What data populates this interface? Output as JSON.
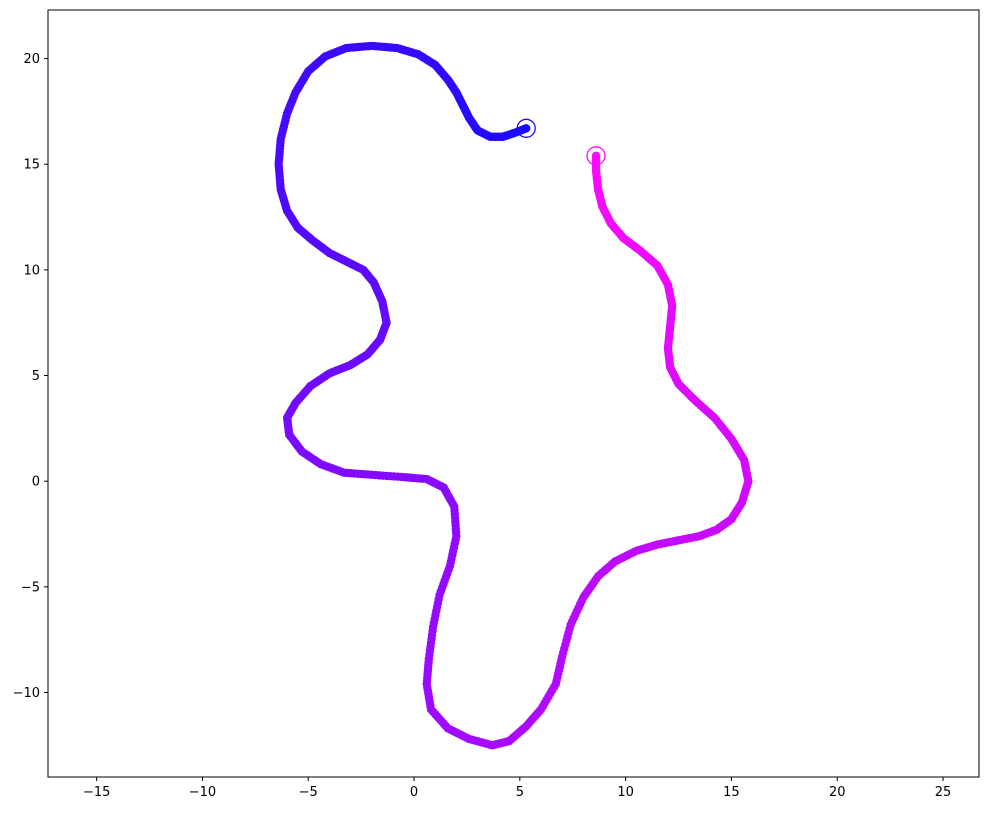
{
  "chart_data": {
    "type": "scatter",
    "title": "",
    "xlabel": "",
    "ylabel": "",
    "xlim": [
      -17.3,
      26.7
    ],
    "ylim": [
      -14.0,
      22.3
    ],
    "grid": false,
    "x_ticks": [
      -15,
      -10,
      -5,
      0,
      5,
      10,
      15,
      20,
      25
    ],
    "y_ticks": [
      -10,
      -5,
      0,
      5,
      10,
      15,
      20
    ],
    "x_tick_labels": [
      "−15",
      "−10",
      "−5",
      "0",
      "5",
      "10",
      "15",
      "20",
      "25"
    ],
    "y_tick_labels": [
      "−10",
      "−5",
      "0",
      "5",
      "10",
      "15",
      "20"
    ],
    "color_start": "#1a0aff",
    "color_end": "#ff0aff",
    "path": [
      [
        5.3,
        16.7
      ],
      [
        4.8,
        16.5
      ],
      [
        4.2,
        16.3
      ],
      [
        3.6,
        16.3
      ],
      [
        3.0,
        16.6
      ],
      [
        2.6,
        17.2
      ],
      [
        2.3,
        17.8
      ],
      [
        2.0,
        18.4
      ],
      [
        1.6,
        19.0
      ],
      [
        1.0,
        19.7
      ],
      [
        0.2,
        20.2
      ],
      [
        -0.8,
        20.5
      ],
      [
        -2.0,
        20.6
      ],
      [
        -3.2,
        20.5
      ],
      [
        -4.2,
        20.1
      ],
      [
        -5.0,
        19.4
      ],
      [
        -5.6,
        18.4
      ],
      [
        -6.0,
        17.4
      ],
      [
        -6.3,
        16.2
      ],
      [
        -6.4,
        15.0
      ],
      [
        -6.3,
        13.8
      ],
      [
        -6.0,
        12.8
      ],
      [
        -5.5,
        12.0
      ],
      [
        -4.8,
        11.4
      ],
      [
        -4.0,
        10.8
      ],
      [
        -3.2,
        10.4
      ],
      [
        -2.4,
        10.0
      ],
      [
        -1.9,
        9.4
      ],
      [
        -1.5,
        8.5
      ],
      [
        -1.3,
        7.5
      ],
      [
        -1.6,
        6.7
      ],
      [
        -2.2,
        6.0
      ],
      [
        -3.0,
        5.5
      ],
      [
        -4.0,
        5.1
      ],
      [
        -4.9,
        4.5
      ],
      [
        -5.6,
        3.7
      ],
      [
        -6.0,
        3.0
      ],
      [
        -5.9,
        2.2
      ],
      [
        -5.3,
        1.4
      ],
      [
        -4.4,
        0.8
      ],
      [
        -3.3,
        0.4
      ],
      [
        -2.0,
        0.3
      ],
      [
        -0.6,
        0.2
      ],
      [
        0.6,
        0.1
      ],
      [
        1.4,
        -0.3
      ],
      [
        1.9,
        -1.2
      ],
      [
        2.0,
        -2.6
      ],
      [
        1.7,
        -4.0
      ],
      [
        1.2,
        -5.4
      ],
      [
        0.9,
        -6.9
      ],
      [
        0.7,
        -8.4
      ],
      [
        0.6,
        -9.6
      ],
      [
        0.8,
        -10.8
      ],
      [
        1.6,
        -11.7
      ],
      [
        2.6,
        -12.2
      ],
      [
        3.7,
        -12.5
      ],
      [
        4.5,
        -12.3
      ],
      [
        5.3,
        -11.6
      ],
      [
        6.0,
        -10.8
      ],
      [
        6.7,
        -9.6
      ],
      [
        7.0,
        -8.3
      ],
      [
        7.4,
        -6.8
      ],
      [
        8.0,
        -5.5
      ],
      [
        8.7,
        -4.5
      ],
      [
        9.5,
        -3.8
      ],
      [
        10.5,
        -3.3
      ],
      [
        11.5,
        -3.0
      ],
      [
        12.5,
        -2.8
      ],
      [
        13.5,
        -2.6
      ],
      [
        14.3,
        -2.3
      ],
      [
        15.0,
        -1.8
      ],
      [
        15.5,
        -1.0
      ],
      [
        15.8,
        0.0
      ],
      [
        15.6,
        1.0
      ],
      [
        15.0,
        2.0
      ],
      [
        14.2,
        3.0
      ],
      [
        13.3,
        3.8
      ],
      [
        12.5,
        4.6
      ],
      [
        12.1,
        5.4
      ],
      [
        12.0,
        6.3
      ],
      [
        12.1,
        7.3
      ],
      [
        12.2,
        8.3
      ],
      [
        12.0,
        9.3
      ],
      [
        11.5,
        10.2
      ],
      [
        10.7,
        10.9
      ],
      [
        9.9,
        11.5
      ],
      [
        9.3,
        12.2
      ],
      [
        8.9,
        13.0
      ],
      [
        8.7,
        13.8
      ],
      [
        8.6,
        14.7
      ],
      [
        8.6,
        15.4
      ]
    ],
    "markers": [
      {
        "x": 5.3,
        "y": 16.7,
        "color": "#1a0aff"
      },
      {
        "x": 8.6,
        "y": 15.4,
        "color": "#ff0aff"
      }
    ]
  }
}
